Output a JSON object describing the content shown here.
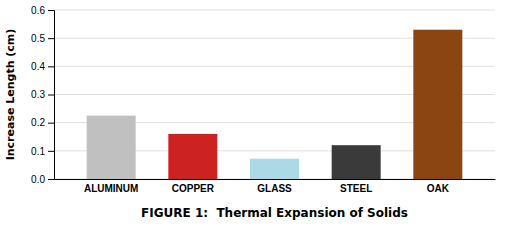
{
  "chart_data": {
    "type": "bar",
    "categories": [
      "ALUMINUM",
      "COPPER",
      "GLASS",
      "STEEL",
      "OAK"
    ],
    "values": [
      0.225,
      0.16,
      0.072,
      0.12,
      0.53
    ],
    "colors": [
      "#c0c0c0",
      "#cc2222",
      "#add8e6",
      "#3a3a3a",
      "#8b4513"
    ],
    "xlabel": "FIGURE 1:  Thermal Expansion of Solids",
    "ylabel": "Increase Length (cm)",
    "ylim": [
      0.0,
      0.6
    ],
    "yticks": [
      {
        "value": 0.0,
        "label": "0.0"
      },
      0.1,
      0.2,
      0.3,
      0.4,
      0.5,
      0.6
    ],
    "grid": true
  }
}
